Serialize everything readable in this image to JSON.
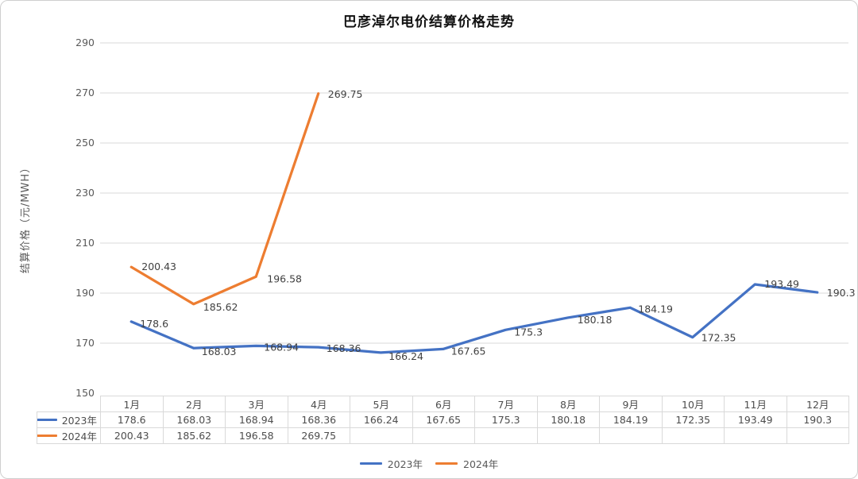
{
  "title": "巴彦淖尔电价结算价格走势",
  "y_axis_title": "结算价格（元/MWH）",
  "colors": {
    "series_2023": "#4472C4",
    "series_2024": "#ED7D31",
    "gridline": "#d9d9d9",
    "table_border": "#d9d9d9",
    "tick_text": "#595959",
    "label_text": "#404040"
  },
  "chart_data": {
    "type": "line",
    "title": "巴彦淖尔电价结算价格走势",
    "xlabel": "",
    "ylabel": "结算价格（元/MWH）",
    "ylim": [
      150,
      290
    ],
    "yticks": [
      150,
      170,
      190,
      210,
      230,
      250,
      270,
      290
    ],
    "grid": true,
    "data_labels": true,
    "data_table_shown": true,
    "legend_position": "bottom",
    "categories": [
      "1月",
      "2月",
      "3月",
      "4月",
      "5月",
      "6月",
      "7月",
      "8月",
      "9月",
      "10月",
      "11月",
      "12月"
    ],
    "series": [
      {
        "name": "2023年",
        "color": "#4472C4",
        "values": [
          178.6,
          168.03,
          168.94,
          168.36,
          166.24,
          167.65,
          175.3,
          180.18,
          184.19,
          172.35,
          193.49,
          190.3
        ]
      },
      {
        "name": "2024年",
        "color": "#ED7D31",
        "values": [
          200.43,
          185.62,
          196.58,
          269.75,
          null,
          null,
          null,
          null,
          null,
          null,
          null,
          null
        ]
      }
    ]
  }
}
